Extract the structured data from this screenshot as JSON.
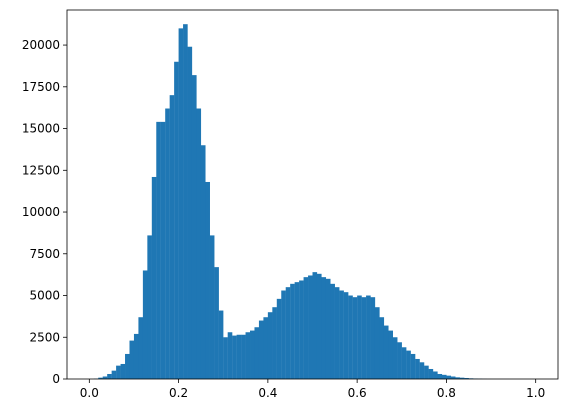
{
  "chart_data": {
    "type": "bar",
    "subtype": "histogram",
    "title": "",
    "xlabel": "",
    "ylabel": "",
    "xlim": [
      -0.05,
      1.05
    ],
    "ylim": [
      0,
      22100
    ],
    "xticks": [
      0.0,
      0.2,
      0.4,
      0.6,
      0.8,
      1.0
    ],
    "xtick_labels": [
      "0.0",
      "0.2",
      "0.4",
      "0.6",
      "0.8",
      "1.0"
    ],
    "yticks": [
      0,
      2500,
      5000,
      7500,
      10000,
      12500,
      15000,
      17500,
      20000
    ],
    "ytick_labels": [
      "0",
      "2500",
      "5000",
      "7500",
      "10000",
      "12500",
      "15000",
      "17500",
      "20000"
    ],
    "grid": false,
    "legend": false,
    "bar_color": "#1f77b4",
    "bin_range": [
      0.0,
      1.0
    ],
    "bin_count": 100,
    "values": [
      0,
      20,
      80,
      150,
      300,
      500,
      800,
      900,
      1500,
      2300,
      2700,
      3700,
      6500,
      8600,
      12100,
      15400,
      15400,
      16200,
      17000,
      19000,
      21000,
      21250,
      19900,
      18200,
      16200,
      14000,
      11800,
      8600,
      6700,
      4100,
      2500,
      2800,
      2600,
      2650,
      2650,
      2800,
      2900,
      3100,
      3500,
      3700,
      4000,
      4300,
      4800,
      5300,
      5500,
      5700,
      5800,
      5900,
      6100,
      6200,
      6400,
      6300,
      6100,
      6000,
      5700,
      5500,
      5300,
      5200,
      5000,
      4900,
      5000,
      4900,
      5000,
      4900,
      4300,
      3700,
      3200,
      2900,
      2500,
      2200,
      1900,
      1700,
      1500,
      1200,
      1000,
      800,
      600,
      450,
      300,
      250,
      200,
      150,
      100,
      80,
      60,
      40,
      30,
      20,
      10,
      5,
      3,
      2,
      1,
      1,
      0,
      0,
      0,
      0,
      0,
      0
    ]
  }
}
